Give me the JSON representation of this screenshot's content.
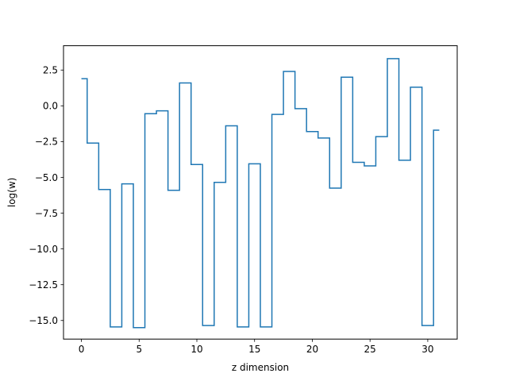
{
  "chart_data": {
    "type": "line",
    "drawstyle": "steps-mid",
    "xlabel": "z dimension",
    "ylabel": "log(w)",
    "xlim": [
      -1.55,
      32.55
    ],
    "ylim": [
      -16.3,
      4.2
    ],
    "xticks": [
      0,
      5,
      10,
      15,
      20,
      25,
      30
    ],
    "xtick_labels": [
      "0",
      "5",
      "10",
      "15",
      "20",
      "25",
      "30"
    ],
    "yticks": [
      2.5,
      0.0,
      -2.5,
      -5.0,
      -7.5,
      -10.0,
      -12.5,
      -15.0
    ],
    "ytick_labels": [
      "2.5",
      "0.0",
      "−2.5",
      "−5.0",
      "−7.5",
      "−10.0",
      "−12.5",
      "−15.0"
    ],
    "grid": false,
    "line_color": "#1f77b4",
    "x": [
      0,
      1,
      2,
      3,
      4,
      5,
      6,
      7,
      8,
      9,
      10,
      11,
      12,
      13,
      14,
      15,
      16,
      17,
      18,
      19,
      20,
      21,
      22,
      23,
      24,
      25,
      26,
      27,
      28,
      29,
      30,
      31
    ],
    "values": [
      1.9,
      -2.6,
      -5.85,
      -15.45,
      -5.45,
      -15.5,
      -0.55,
      -0.35,
      -5.9,
      1.6,
      -4.1,
      -15.35,
      -5.35,
      -1.4,
      -15.45,
      -4.05,
      -15.45,
      -0.6,
      2.4,
      -0.2,
      -1.8,
      -2.25,
      -5.75,
      2.0,
      -3.95,
      -4.2,
      -2.15,
      3.3,
      -3.8,
      1.3,
      -15.35,
      -1.7
    ]
  }
}
